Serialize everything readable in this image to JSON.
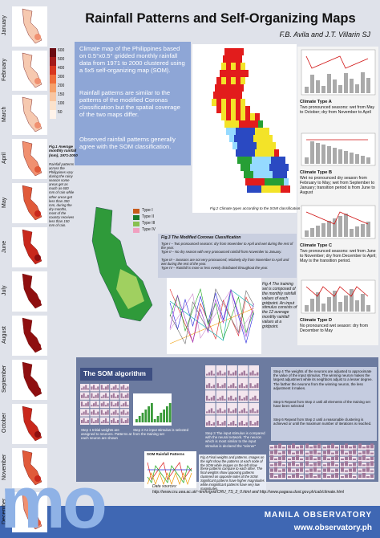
{
  "header": {
    "title": "Rainfall Patterns and Self-Organizing Maps",
    "authors": "F.B. Avila and J.T. Villarin SJ"
  },
  "months": [
    "January",
    "February",
    "March",
    "April",
    "May",
    "June",
    "July",
    "August",
    "September",
    "October",
    "November",
    "December"
  ],
  "fig1": {
    "colorbar": [
      "600",
      "500",
      "400",
      "300",
      "200",
      "150",
      "100",
      "50"
    ],
    "caption": "Fig.1 Average monthly rainfall (mm), 1971-2000",
    "note": "Rainfall patterns across the Philippines vary during the rainy season some areas get as much as 600 mm of rain while other areas get less than 350 mm, during the dry months, most of the country receives less than 150 mm of rain."
  },
  "intro": [
    "Climate map of the Philippines based on 0.5°x0.5° gridded monthly rainfall data from 1971 to 2000 clustered using a 5x5 self-organizing map (SOM).",
    "Rainfall patterns are similar to the patterns of the modified Coronas classification but the spatial coverage of the two maps differ.",
    "Observed rainfall patterns generally agree with the SOM classification."
  ],
  "fig2": {
    "caption": "Fig.2 Climate types according to the SOM classification"
  },
  "climate_types": [
    {
      "name": "Climate Type A",
      "description": "Two pronounced seasons: wet from May to October; dry from November to April"
    },
    {
      "name": "Climate Type B",
      "description": "Wet no pronounced dry season from February to May; wet from September to January; transition period is from June to August"
    },
    {
      "name": "Climate Type C",
      "description": "Two pronounced seasons: wet from June to November; dry from December to April; May is the transition period."
    },
    {
      "name": "Climate Type D",
      "description": "No pronounced wet season: dry from December to May"
    }
  ],
  "fig3": {
    "legend": [
      "Type I",
      "Type II",
      "Type III",
      "Type IV"
    ],
    "caption": "Fig.3 The Modified Coronas Classification",
    "types": [
      "Type I – Two pronounced seasons: dry from November to April and wet during the rest of the year.",
      "Type II – No dry season with very pronounced rainfall from November to January.",
      "Type III – Seasons are not very pronounced; relatively dry from November to April and wet during the rest of the year.",
      "Type IV – Rainfall is more or less evenly distributed throughout the year."
    ]
  },
  "fig4": {
    "caption": "Fig.4 The training set is composed of the monthly rainfall values of each gridpoint. An input stimulus consists of the 12 average monthly rainfall values at a gridpoint."
  },
  "som": {
    "heading": "The SOM algorithm",
    "steps": [
      "Step 1 Initial weights are assigned to neurons. Patterns at each neuron are shown",
      "Step 2 An input stimulus is selected from the training set",
      "Step 3 The input stimulus is compared with the neural network. The neuron which is most similar to the input stimulus is declared the \"winner\"",
      "Step 4 The weights of the neurons are adjusted to approximate the value of the input stimulus. The winning neuron makes the largest adjustment while its neighbors adjust to a lesser degree. The farther the neurons from the winning neuron, the less adjustment it makes.",
      "Step 5 Repeat from Step 2 until all elements of the training set have been selected",
      "Step 6 Repeat from Step 2 until a reasonable clustering is achieved or until the maximum number of iterations is reached."
    ],
    "fig_title": "SOM Rainfall Patterns",
    "fig_caption": "Fig.4 Final weights and patterns. Images on the right show the patterns at each node of the SOM while images on the left show these patterns compare to each other. The final weights show opposing patterns clustered on opposite sides of the SOM. Significant patterns have higher magnitudes while insignificant patterns have very low magnitudes."
  },
  "sources": {
    "label": "Data sources:",
    "urls": "http://www.cru.uea.ac.uk/~timm/grid/CRU_TS_2_0.html and http://www.pagasa.dost.gov.ph/cab/climate.html"
  },
  "footer": {
    "logo": "mo",
    "name": "MANILA OBSERVATORY",
    "url": "www.observatory.ph"
  }
}
